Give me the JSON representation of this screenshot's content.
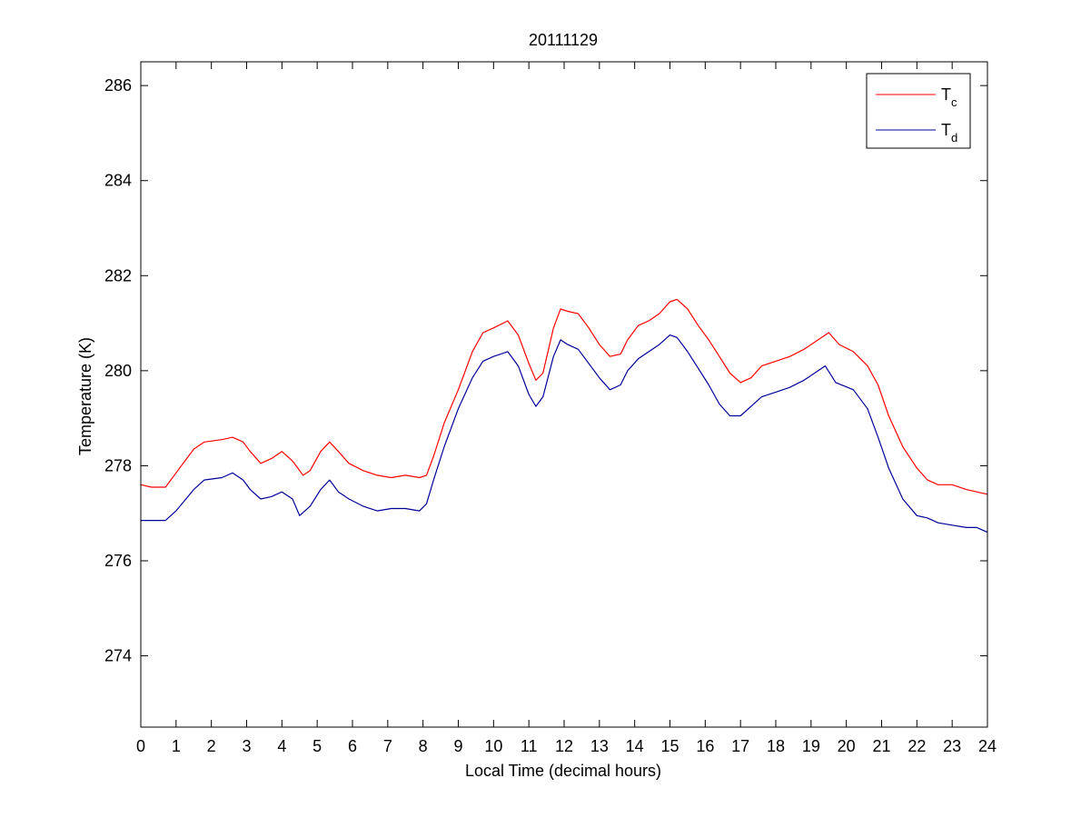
{
  "chart_data": {
    "type": "line",
    "title": "20111129",
    "xlabel": "Local Time (decimal hours)",
    "ylabel": "Temperature (K)",
    "xlim": [
      0,
      24
    ],
    "ylim": [
      272.5,
      286.5
    ],
    "xticks": [
      "0",
      "1",
      "2",
      "3",
      "4",
      "5",
      "6",
      "7",
      "8",
      "9",
      "10",
      "11",
      "12",
      "13",
      "14",
      "15",
      "16",
      "17",
      "18",
      "19",
      "20",
      "21",
      "22",
      "23",
      "24"
    ],
    "yticks": [
      "274",
      "276",
      "278",
      "280",
      "282",
      "284",
      "286"
    ],
    "grid": false,
    "legend_position": "top-right",
    "series": [
      {
        "name_main": "T",
        "name_sub": "c",
        "color": "#ff0000",
        "x": [
          0,
          0.3,
          0.7,
          1,
          1.5,
          1.8,
          2.3,
          2.6,
          2.9,
          3.1,
          3.4,
          3.7,
          4,
          4.3,
          4.6,
          4.8,
          5.1,
          5.35,
          5.6,
          5.9,
          6.3,
          6.7,
          7.1,
          7.5,
          7.9,
          8.1,
          8.3,
          8.6,
          9,
          9.4,
          9.7,
          10,
          10.4,
          10.7,
          11,
          11.2,
          11.4,
          11.7,
          11.9,
          12.1,
          12.4,
          12.7,
          13,
          13.3,
          13.6,
          13.8,
          14.1,
          14.4,
          14.7,
          15,
          15.2,
          15.5,
          15.8,
          16.1,
          16.4,
          16.7,
          17,
          17.3,
          17.6,
          18,
          18.4,
          18.8,
          19.2,
          19.5,
          19.8,
          20.2,
          20.6,
          20.9,
          21.2,
          21.6,
          22,
          22.3,
          22.6,
          23,
          23.4,
          23.7,
          24
        ],
        "values": [
          277.6,
          277.55,
          277.55,
          277.85,
          278.35,
          278.5,
          278.55,
          278.6,
          278.5,
          278.3,
          278.05,
          278.15,
          278.3,
          278.1,
          277.8,
          277.9,
          278.3,
          278.5,
          278.3,
          278.05,
          277.9,
          277.8,
          277.75,
          277.8,
          277.75,
          277.8,
          278.2,
          278.9,
          279.6,
          280.4,
          280.8,
          280.9,
          281.05,
          280.75,
          280.15,
          279.8,
          279.95,
          280.9,
          281.3,
          281.25,
          281.2,
          280.9,
          280.55,
          280.3,
          280.35,
          280.65,
          280.95,
          281.05,
          281.2,
          281.45,
          281.5,
          281.3,
          280.95,
          280.65,
          280.3,
          279.95,
          279.75,
          279.85,
          280.1,
          280.2,
          280.3,
          280.45,
          280.65,
          280.8,
          280.55,
          280.4,
          280.1,
          279.7,
          279.05,
          278.4,
          277.95,
          277.7,
          277.6,
          277.6,
          277.5,
          277.45,
          277.4
        ]
      },
      {
        "name_main": "T",
        "name_sub": "d",
        "color": "#000099",
        "x": [
          0,
          0.3,
          0.7,
          1,
          1.5,
          1.8,
          2.3,
          2.6,
          2.9,
          3.1,
          3.4,
          3.7,
          4,
          4.3,
          4.5,
          4.8,
          5.1,
          5.35,
          5.6,
          5.9,
          6.3,
          6.7,
          7.1,
          7.5,
          7.9,
          8.1,
          8.3,
          8.6,
          9,
          9.4,
          9.7,
          10,
          10.4,
          10.7,
          11,
          11.2,
          11.4,
          11.7,
          11.9,
          12.1,
          12.4,
          12.7,
          13,
          13.3,
          13.6,
          13.8,
          14.1,
          14.4,
          14.7,
          15,
          15.2,
          15.5,
          15.8,
          16.1,
          16.4,
          16.7,
          17,
          17.3,
          17.6,
          18,
          18.4,
          18.8,
          19.2,
          19.4,
          19.7,
          20.2,
          20.6,
          20.9,
          21.2,
          21.6,
          22,
          22.3,
          22.6,
          23,
          23.4,
          23.7,
          24
        ],
        "values": [
          276.85,
          276.85,
          276.85,
          277.05,
          277.5,
          277.7,
          277.75,
          277.85,
          277.7,
          277.5,
          277.3,
          277.35,
          277.45,
          277.3,
          276.95,
          277.15,
          277.5,
          277.7,
          277.45,
          277.3,
          277.15,
          277.05,
          277.1,
          277.1,
          277.05,
          277.2,
          277.7,
          278.4,
          279.2,
          279.85,
          280.2,
          280.3,
          280.4,
          280.1,
          279.5,
          279.25,
          279.45,
          280.3,
          280.65,
          280.55,
          280.45,
          280.15,
          279.85,
          279.6,
          279.7,
          280.0,
          280.25,
          280.4,
          280.55,
          280.75,
          280.7,
          280.4,
          280.05,
          279.7,
          279.3,
          279.05,
          279.05,
          279.25,
          279.45,
          279.55,
          279.65,
          279.8,
          280.0,
          280.1,
          279.75,
          279.6,
          279.2,
          278.6,
          277.95,
          277.3,
          276.95,
          276.9,
          276.8,
          276.75,
          276.7,
          276.7,
          276.6
        ]
      }
    ]
  }
}
